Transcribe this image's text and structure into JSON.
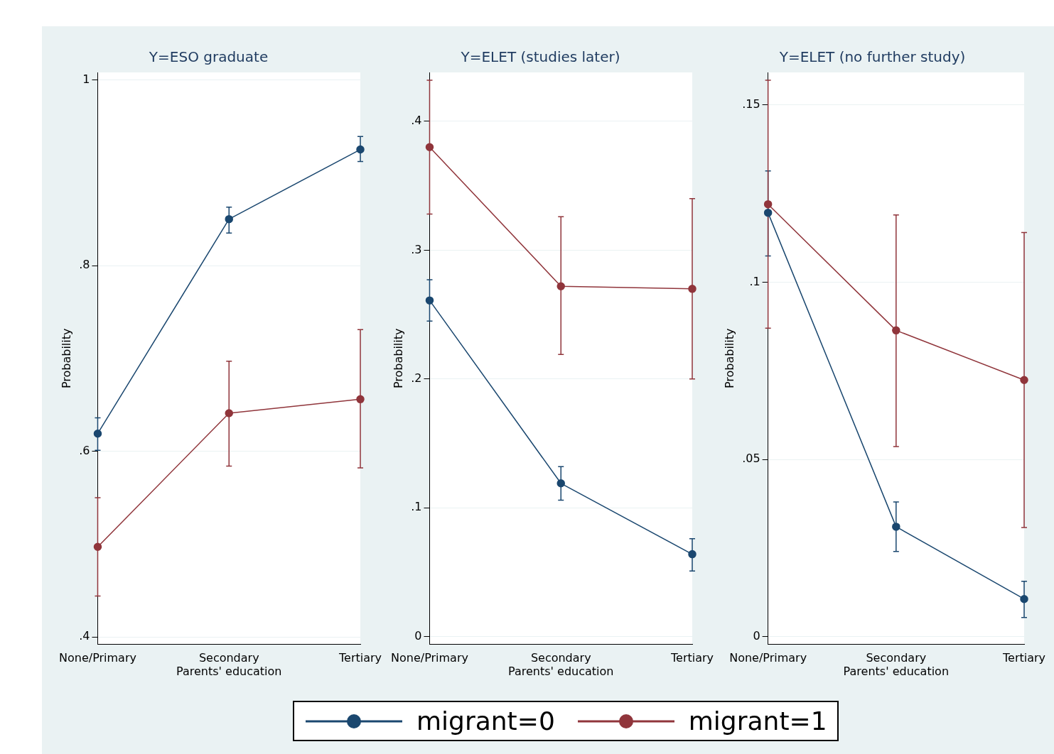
{
  "chart_data": [
    {
      "type": "line",
      "title": "Y=ESO graduate",
      "xlabel": "Parents' education",
      "ylabel": "Probability",
      "categories": [
        "None/Primary",
        "Secondary",
        "Tertiary"
      ],
      "ylim": [
        0.392,
        1.008
      ],
      "yticks": [
        {
          "value": 0.4,
          "label": ".4"
        },
        {
          "value": 0.6,
          "label": ".6"
        },
        {
          "value": 0.8,
          "label": ".8"
        },
        {
          "value": 1,
          "label": "1"
        }
      ],
      "grid": "y",
      "legend": "bottom",
      "marker": "circle",
      "series": [
        {
          "name": "migrant=0",
          "color": "#1a476f",
          "values": [
            0.619,
            0.85,
            0.925
          ],
          "errors": [
            [
              0.601,
              0.636
            ],
            [
              0.835,
              0.863
            ],
            [
              0.912,
              0.939
            ]
          ]
        },
        {
          "name": "migrant=1",
          "color": "#90353b",
          "values": [
            0.497,
            0.641,
            0.656
          ],
          "errors": [
            [
              0.444,
              0.55
            ],
            [
              0.584,
              0.697
            ],
            [
              0.582,
              0.731
            ]
          ]
        }
      ]
    },
    {
      "type": "line",
      "title": "Y=ELET (studies later)",
      "xlabel": "Parents' education",
      "ylabel": "Probability",
      "categories": [
        "None/Primary",
        "Secondary",
        "Tertiary"
      ],
      "ylim": [
        -0.006,
        0.438
      ],
      "yticks": [
        {
          "value": 0,
          "label": "0"
        },
        {
          "value": 0.1,
          "label": ".1"
        },
        {
          "value": 0.2,
          "label": ".2"
        },
        {
          "value": 0.3,
          "label": ".3"
        },
        {
          "value": 0.4,
          "label": ".4"
        }
      ],
      "grid": "y",
      "legend": "bottom",
      "marker": "circle",
      "series": [
        {
          "name": "migrant=0",
          "color": "#1a476f",
          "values": [
            0.261,
            0.119,
            0.064
          ],
          "errors": [
            [
              0.245,
              0.277
            ],
            [
              0.106,
              0.132
            ],
            [
              0.051,
              0.076
            ]
          ]
        },
        {
          "name": "migrant=1",
          "color": "#90353b",
          "values": [
            0.38,
            0.272,
            0.27
          ],
          "errors": [
            [
              0.328,
              0.432
            ],
            [
              0.219,
              0.326
            ],
            [
              0.2,
              0.34
            ]
          ]
        }
      ]
    },
    {
      "type": "line",
      "title": "Y=ELET (no further study)",
      "xlabel": "Parents' education",
      "ylabel": "Probability",
      "categories": [
        "None/Primary",
        "Secondary",
        "Tertiary"
      ],
      "ylim": [
        -0.0022,
        0.1592
      ],
      "yticks": [
        {
          "value": 0,
          "label": "0"
        },
        {
          "value": 0.05,
          "label": ".05"
        },
        {
          "value": 0.1,
          "label": ".1"
        },
        {
          "value": 0.15,
          "label": ".15"
        }
      ],
      "grid": "y",
      "legend": "bottom",
      "marker": "circle",
      "series": [
        {
          "name": "migrant=0",
          "color": "#1a476f",
          "values": [
            0.1196,
            0.031,
            0.0106
          ],
          "errors": [
            [
              0.1074,
              0.1314
            ],
            [
              0.024,
              0.038
            ],
            [
              0.0054,
              0.0156
            ]
          ]
        },
        {
          "name": "migrant=1",
          "color": "#90353b",
          "values": [
            0.122,
            0.0864,
            0.0724
          ],
          "errors": [
            [
              0.087,
              0.157
            ],
            [
              0.0536,
              0.119
            ],
            [
              0.0308,
              0.114
            ]
          ]
        }
      ]
    }
  ]
}
